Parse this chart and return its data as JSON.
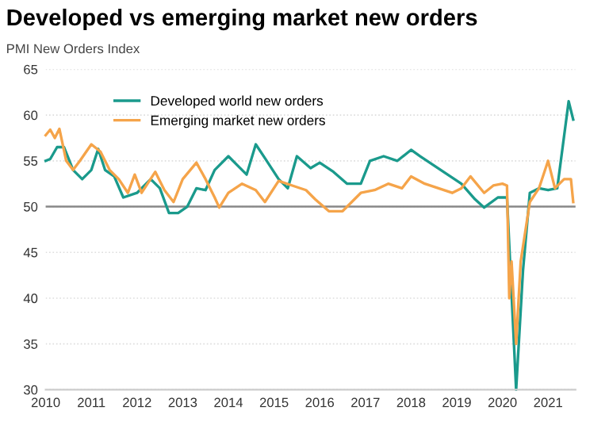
{
  "chart_data": {
    "type": "line",
    "title": "Developed vs emerging market new orders",
    "subtitle": "PMI New Orders Index",
    "xlim": [
      2010,
      2021.6
    ],
    "xticks": [
      2010,
      2011,
      2012,
      2013,
      2014,
      2015,
      2016,
      2017,
      2018,
      2019,
      2020,
      2021
    ],
    "ylim": [
      30,
      65
    ],
    "yticks": [
      30,
      35,
      40,
      45,
      50,
      55,
      60,
      65
    ],
    "grid": "y",
    "legend": "top left",
    "line_style": "solid",
    "ref_lines": [
      {
        "axis": "y",
        "value": 50,
        "color": "#888888"
      }
    ],
    "series": [
      {
        "name": "Developed world new orders",
        "color": "#1a9a8c",
        "x": [
          2010.0,
          2010.1,
          2010.25,
          2010.4,
          2010.6,
          2010.8,
          2011.0,
          2011.15,
          2011.3,
          2011.5,
          2011.7,
          2012.0,
          2012.3,
          2012.5,
          2012.7,
          2012.9,
          2013.1,
          2013.3,
          2013.5,
          2013.7,
          2014.0,
          2014.2,
          2014.4,
          2014.6,
          2014.8,
          2015.1,
          2015.3,
          2015.5,
          2015.8,
          2016.0,
          2016.3,
          2016.6,
          2016.9,
          2017.1,
          2017.4,
          2017.7,
          2018.0,
          2018.2,
          2018.5,
          2018.8,
          2019.1,
          2019.4,
          2019.6,
          2019.9,
          2020.1,
          2020.3,
          2020.45,
          2020.6,
          2020.8,
          2021.0,
          2021.2,
          2021.45,
          2021.55
        ],
        "values": [
          55,
          55.2,
          56.5,
          56.5,
          54,
          53,
          54,
          56.3,
          54,
          53.3,
          51,
          51.5,
          53,
          52,
          49.3,
          49.3,
          50,
          52,
          51.8,
          54,
          55.5,
          54.5,
          53.5,
          56.8,
          55.3,
          53,
          52,
          55.5,
          54.2,
          54.8,
          53.8,
          52.5,
          52.5,
          55,
          55.5,
          55,
          56.2,
          55.5,
          54.5,
          53.5,
          52.5,
          50.8,
          49.9,
          51,
          51,
          30,
          43,
          51.5,
          52,
          51.8,
          52,
          61.5,
          59.5
        ]
      },
      {
        "name": "Emerging market new orders",
        "color": "#f5a44a",
        "x": [
          2010.0,
          2010.1,
          2010.2,
          2010.3,
          2010.45,
          2010.6,
          2010.75,
          2011.0,
          2011.2,
          2011.4,
          2011.6,
          2011.8,
          2011.95,
          2012.1,
          2012.4,
          2012.6,
          2012.8,
          2013.0,
          2013.3,
          2013.5,
          2013.7,
          2013.8,
          2014.0,
          2014.3,
          2014.6,
          2014.8,
          2015.1,
          2015.4,
          2015.7,
          2015.9,
          2016.2,
          2016.5,
          2016.7,
          2016.9,
          2017.2,
          2017.5,
          2017.8,
          2018.0,
          2018.3,
          2018.6,
          2018.9,
          2019.1,
          2019.3,
          2019.6,
          2019.8,
          2020.0,
          2020.1,
          2020.15,
          2020.2,
          2020.3,
          2020.4,
          2020.6,
          2020.8,
          2021.0,
          2021.15,
          2021.35,
          2021.5,
          2021.55
        ],
        "values": [
          57.8,
          58.4,
          57.5,
          58.5,
          55,
          54,
          55,
          56.8,
          56,
          54,
          53,
          51.5,
          53.5,
          51.5,
          53.8,
          51.8,
          50.5,
          53,
          54.8,
          53,
          51,
          49.9,
          51.5,
          52.5,
          51.8,
          50.5,
          52.8,
          52.3,
          51.8,
          50.8,
          49.5,
          49.5,
          50.5,
          51.5,
          51.8,
          52.5,
          52,
          53.3,
          52.5,
          52,
          51.5,
          52,
          53.3,
          51.5,
          52.3,
          52.5,
          52.3,
          40,
          44,
          35,
          44,
          50.5,
          52,
          55,
          52,
          53,
          53,
          50.5
        ]
      }
    ]
  }
}
